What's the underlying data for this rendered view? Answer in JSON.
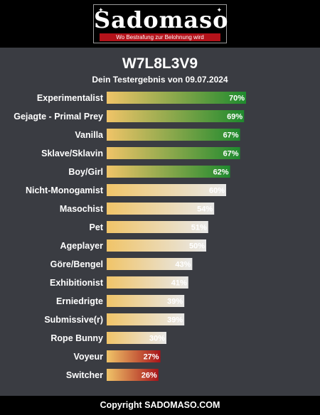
{
  "brand": {
    "logo_text": "Sadomaso",
    "tagline": "Wo Bestrafung zur Belohnung wird"
  },
  "footer": {
    "copyright": "Copyright SADOMASO.COM"
  },
  "colors": {
    "header_bg": "#000000",
    "panel_bg": "#3a3c42",
    "bar_start": "#f0c468",
    "high_end": "#1f8a2e",
    "neutral_end": "#e8e8e8",
    "low_end": "#a8141a"
  },
  "chart_data": {
    "type": "bar",
    "orientation": "horizontal",
    "title": "W7L8L3V9",
    "subtitle": "Dein Testergebnis von 09.07.2024",
    "xlim": [
      0,
      100
    ],
    "value_suffix": "%",
    "categories": [
      "Experimentalist",
      "Gejagte - Primal Prey",
      "Vanilla",
      "Sklave/Sklavin",
      "Boy/Girl",
      "Nicht-Monogamist",
      "Masochist",
      "Pet",
      "Ageplayer",
      "Göre/Bengel",
      "Exhibitionist",
      "Erniedrigte",
      "Submissive(r)",
      "Rope Bunny",
      "Voyeur",
      "Switcher"
    ],
    "values": [
      70,
      69,
      67,
      67,
      62,
      60,
      54,
      51,
      50,
      43,
      41,
      39,
      39,
      30,
      27,
      26
    ],
    "labels": [
      "70%",
      "69%",
      "67%",
      "67%",
      "62%",
      "60%",
      "54%",
      "51%",
      "50%",
      "43%",
      "41%",
      "39%",
      "39%",
      "30%",
      "27%",
      "26%"
    ],
    "tiers": [
      "high",
      "high",
      "high",
      "high",
      "high",
      "neutral",
      "neutral",
      "neutral",
      "neutral",
      "neutral",
      "neutral",
      "neutral",
      "neutral",
      "neutral",
      "low",
      "low"
    ]
  }
}
